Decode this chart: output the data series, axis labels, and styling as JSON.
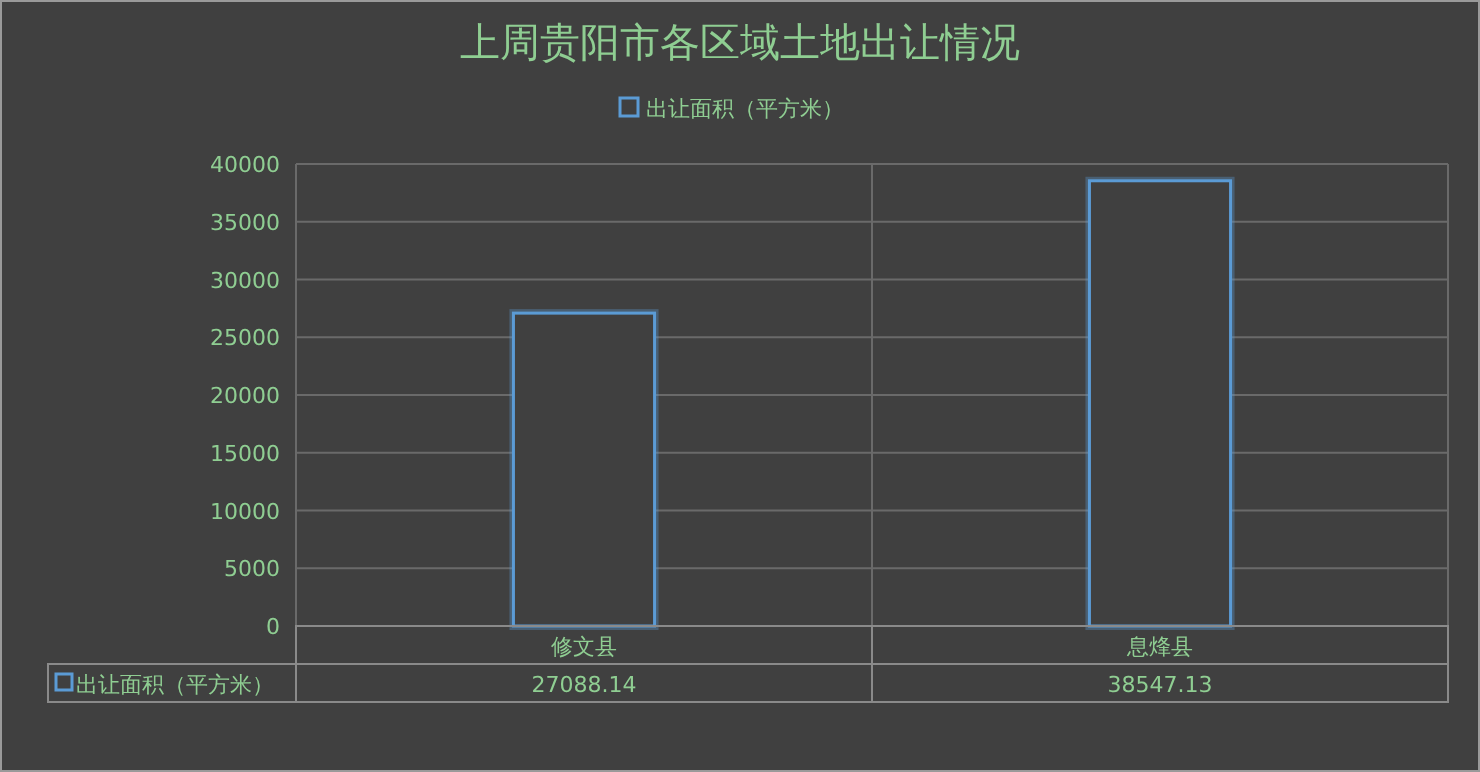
{
  "chart_data": {
    "type": "bar",
    "title": "上周贵阳市各区域土地出让情况",
    "categories": [
      "修文县",
      "息烽县"
    ],
    "series": [
      {
        "name": "出让面积（平方米）",
        "color": "#5b9bd5",
        "values": [
          27088.14,
          38547.13
        ]
      }
    ],
    "ylim": [
      0,
      40000
    ],
    "yticks": [
      0,
      5000,
      10000,
      15000,
      20000,
      25000,
      30000,
      35000,
      40000
    ],
    "grid": true,
    "legend": "top",
    "data_labels": true
  }
}
